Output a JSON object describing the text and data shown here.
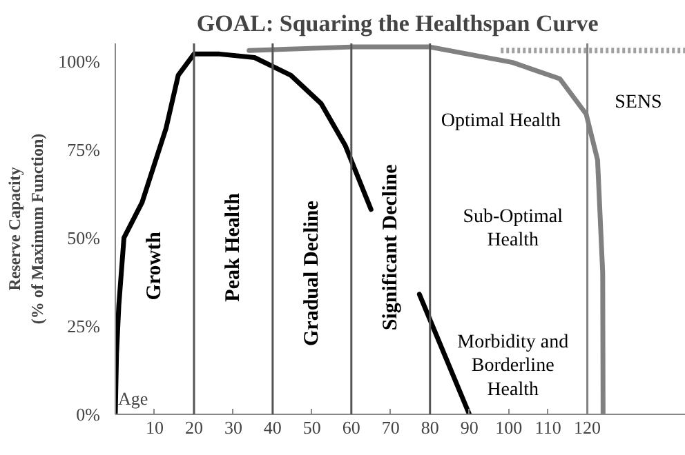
{
  "chart_data": {
    "type": "line",
    "title": "GOAL:  Squaring the Healthspan Curve",
    "xlabel": "Age",
    "ylabel": "Reserve Capacity\n(% of Maximum Function)",
    "xlim": [
      0,
      145
    ],
    "ylim": [
      0,
      105
    ],
    "xticks": [
      10,
      20,
      30,
      40,
      50,
      60,
      70,
      80,
      90,
      100,
      110,
      120
    ],
    "yticks": [
      {
        "value": 0,
        "label": "0%"
      },
      {
        "value": 25,
        "label": "25%"
      },
      {
        "value": 50,
        "label": "50%"
      },
      {
        "value": 75,
        "label": "75%"
      },
      {
        "value": 100,
        "label": "100%"
      }
    ],
    "grid": false,
    "marker": "none",
    "series": [
      {
        "color": "#000000",
        "line_style": "solid",
        "x": [
          0,
          0.3,
          0.9,
          2.2,
          6.8,
          12.9,
          16,
          20,
          26.5,
          35.4,
          44.6,
          52.3,
          58.5,
          65
        ],
        "values": [
          0,
          17,
          31,
          50,
          60,
          81,
          96,
          102,
          102,
          101,
          96,
          88,
          76,
          58
        ]
      },
      {
        "color": "#000000",
        "line_style": "solid",
        "x": [
          77.3,
          90
        ],
        "values": [
          34,
          0
        ]
      },
      {
        "color": "#808080",
        "line_style": "solid",
        "x": [
          34,
          60,
          80,
          101,
          113,
          119.7,
          122.6,
          123.9,
          124
        ],
        "values": [
          103,
          104,
          104,
          99.6,
          95,
          85,
          72,
          40,
          0
        ]
      },
      {
        "color": "#a0a0a0",
        "line_style": "dotted",
        "x": [
          98,
          145
        ],
        "values": [
          103,
          103
        ]
      }
    ],
    "ref_lines": [
      {
        "axis": "x",
        "value": 20,
        "color": "#555555"
      },
      {
        "axis": "x",
        "value": 40,
        "color": "#555555"
      },
      {
        "axis": "x",
        "value": 60,
        "color": "#555555"
      },
      {
        "axis": "x",
        "value": 80,
        "color": "#555555"
      },
      {
        "axis": "x",
        "value": 120,
        "color": "#808080"
      }
    ],
    "annotations": [
      "Growth",
      "Peak Health",
      "Gradual Decline",
      "Significant Decline",
      "Optimal Health",
      "Sub-Optimal\nHealth",
      "Morbidity and\nBorderline\nHealth",
      "SENS"
    ]
  }
}
